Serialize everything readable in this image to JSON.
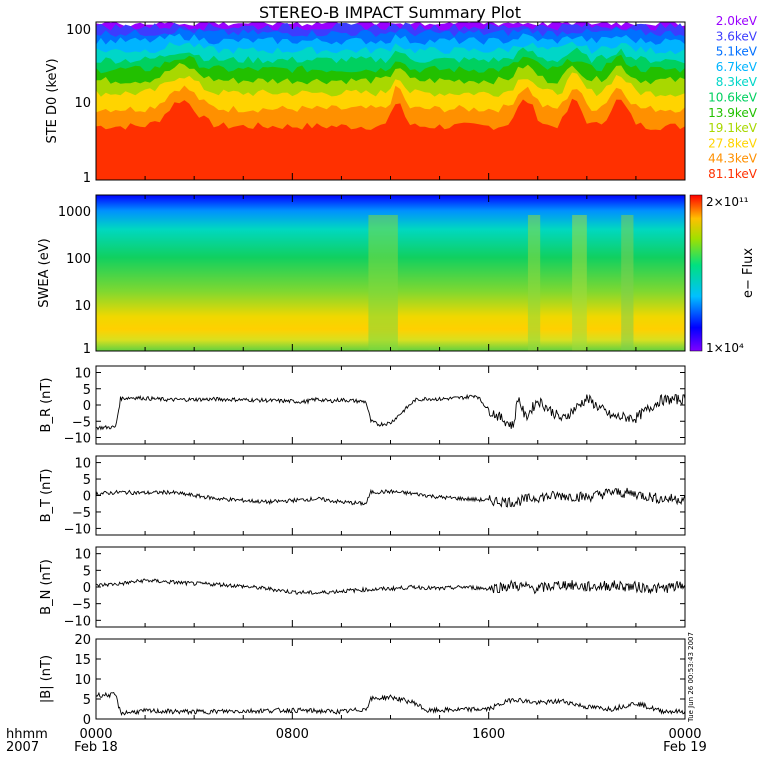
{
  "title": "STEREO-B IMPACT Summary Plot",
  "energy_legend": [
    {
      "label": "2.0keV",
      "color": "#9a00ff"
    },
    {
      "label": "3.6keV",
      "color": "#3c3cff"
    },
    {
      "label": "5.1keV",
      "color": "#0070ff"
    },
    {
      "label": "6.7keV",
      "color": "#00b4ff"
    },
    {
      "label": "8.3keV",
      "color": "#00d6c8"
    },
    {
      "label": "10.6keV",
      "color": "#00d060"
    },
    {
      "label": "13.9keV",
      "color": "#22c000"
    },
    {
      "label": "19.1keV",
      "color": "#a8d800"
    },
    {
      "label": "27.8keV",
      "color": "#ffd400"
    },
    {
      "label": "44.3keV",
      "color": "#ff9000"
    },
    {
      "label": "81.1keV",
      "color": "#ff3000"
    }
  ],
  "colorbar": {
    "label": "e− Flux",
    "max_label": "2×10¹¹",
    "min_label": "1×10⁴"
  },
  "timestamp": "Tue Jun 26 00:53:43 2007",
  "x_axis": {
    "left_labels": [
      "hhmm",
      "2007"
    ],
    "ticks": [
      {
        "label": "0000",
        "sub": "Feb 18",
        "hour": 0
      },
      {
        "label": "0800",
        "sub": "",
        "hour": 8
      },
      {
        "label": "1600",
        "sub": "",
        "hour": 16
      },
      {
        "label": "0000",
        "sub": "Feb 19",
        "hour": 24
      }
    ]
  },
  "chart_data": [
    {
      "type": "line",
      "name": "ste",
      "ylabel": "STE D0 (keV)",
      "log": true,
      "ylim": [
        1,
        100
      ],
      "ytick_labels": [
        "1",
        "10",
        "100"
      ],
      "xlim_hours": [
        0,
        24
      ],
      "series_note": "11 energy channel flux traces (colors per energy_legend)"
    },
    {
      "type": "heatmap",
      "name": "swea",
      "ylabel": "SWEA (eV)",
      "log": true,
      "ylim": [
        1,
        2000
      ],
      "ytick_labels": [
        "1",
        "10",
        "100",
        "1000"
      ],
      "xlim_hours": [
        0,
        24
      ]
    },
    {
      "type": "line",
      "name": "br",
      "ylabel": "B_R (nT)",
      "ylim": [
        -12,
        12
      ],
      "ytick_labels": [
        "10",
        "5",
        "0",
        "−5",
        "−10"
      ],
      "x": [
        0,
        0.8,
        1.0,
        1.5,
        3,
        5,
        7,
        8.5,
        9,
        9.5,
        10,
        11,
        11.2,
        11.5,
        12,
        12.5,
        13,
        13.5,
        14,
        15,
        15.5,
        16,
        17,
        17.2,
        17.5,
        18,
        19,
        20,
        21,
        22,
        23,
        24
      ],
      "y": [
        -7,
        -6.8,
        2,
        2.3,
        1.6,
        1.8,
        1.4,
        1,
        1.8,
        1.2,
        1.6,
        1,
        -5,
        -6,
        -5.5,
        -2,
        1.5,
        2,
        1.8,
        2.3,
        3,
        -1.5,
        -6.5,
        2.5,
        -4,
        1.5,
        -4.5,
        2,
        -3.5,
        -4,
        1.5,
        1.8
      ]
    },
    {
      "type": "line",
      "name": "bt",
      "ylabel": "B_T (nT)",
      "ylim": [
        -12,
        12
      ],
      "ytick_labels": [
        "10",
        "5",
        "0",
        "−5",
        "−10"
      ],
      "x": [
        0,
        1,
        2,
        3,
        4,
        5,
        6,
        7,
        8,
        9,
        10,
        11,
        11.2,
        12,
        13,
        14,
        15,
        16,
        17,
        18,
        19,
        20,
        21,
        22,
        23,
        24
      ],
      "y": [
        0.5,
        1,
        0.8,
        1,
        0,
        -1,
        -1.5,
        -2,
        -1.5,
        -1,
        -2,
        -2.5,
        1,
        1.2,
        0.5,
        -0.5,
        -1,
        -1.5,
        -2,
        -0.5,
        0,
        -0.5,
        1,
        0.5,
        -1,
        -1
      ]
    },
    {
      "type": "line",
      "name": "bn",
      "ylabel": "B_N (nT)",
      "ylim": [
        -12,
        12
      ],
      "ytick_labels": [
        "10",
        "5",
        "0",
        "−5",
        "−10"
      ],
      "x": [
        0,
        1,
        2,
        3,
        4,
        5,
        6,
        7,
        8,
        9,
        10,
        11,
        12,
        13,
        14,
        15,
        16,
        17,
        18,
        19,
        20,
        21,
        22,
        23,
        24
      ],
      "y": [
        0.5,
        1,
        2,
        1.5,
        1,
        0.8,
        0.2,
        -0.5,
        -1.5,
        -1.8,
        -1.2,
        -0.8,
        -0.5,
        0,
        -0.5,
        0,
        -0.5,
        0.5,
        -0.5,
        0.8,
        0,
        0.5,
        0,
        -0.5,
        0.5
      ]
    },
    {
      "type": "line",
      "name": "bmag",
      "ylabel": "|B| (nT)",
      "ylim": [
        0,
        20
      ],
      "ytick_labels": [
        "20",
        "15",
        "10",
        "5",
        "0"
      ],
      "x": [
        0,
        0.8,
        1,
        2,
        4,
        6,
        8,
        10,
        11,
        11.2,
        12,
        13,
        13.5,
        14,
        16,
        17,
        18,
        19,
        20,
        21,
        22,
        23,
        24
      ],
      "y": [
        6,
        6,
        1.5,
        2,
        1.8,
        2,
        2.2,
        1.8,
        2.5,
        5,
        5.5,
        4,
        2,
        2.2,
        2.5,
        5,
        4,
        4.5,
        3,
        2.5,
        4,
        2,
        1.8
      ]
    }
  ]
}
